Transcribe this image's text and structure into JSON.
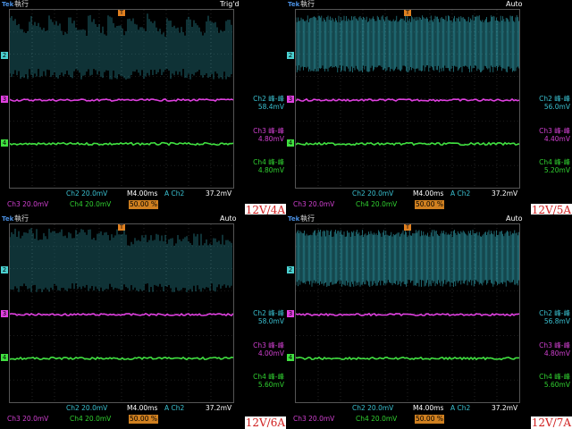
{
  "panels": [
    {
      "id": "p1",
      "brand": "Tek",
      "run_label": "執行",
      "trigger_state": "Trig'd",
      "trace_style": "bursts",
      "ch2_meas": {
        "label": "Ch2 峰-峰",
        "value": "58.4mV"
      },
      "ch3_meas": {
        "label": "Ch3 峰-峰",
        "value": "4.80mV"
      },
      "ch4_meas": {
        "label": "Ch4 峰-峰",
        "value": "4.80mV"
      },
      "ch2_scale": "Ch2  20.0mV",
      "time_scale": "M4.00ms",
      "trig_channel": "A  Ch2",
      "trig_level": "37.2mV",
      "ch3_scale": "Ch3  20.0mV",
      "ch4_scale": "Ch4  20.0mV",
      "trig_position": "50.00 %",
      "condition_label": "12V/4A"
    },
    {
      "id": "p2",
      "brand": "Tek",
      "run_label": "執行",
      "trigger_state": "Auto",
      "trace_style": "dense",
      "ch2_meas": {
        "label": "Ch2 峰-峰",
        "value": "56.0mV"
      },
      "ch3_meas": {
        "label": "Ch3 峰-峰",
        "value": "4.40mV"
      },
      "ch4_meas": {
        "label": "Ch4 峰-峰",
        "value": "5.20mV"
      },
      "ch2_scale": "Ch2  20.0mV",
      "time_scale": "M4.00ms",
      "trig_channel": "A  Ch2",
      "trig_level": "37.2mV",
      "ch3_scale": "Ch3  20.0mV",
      "ch4_scale": "Ch4  20.0mV",
      "trig_position": "50.00 %",
      "condition_label": "12V/5A"
    },
    {
      "id": "p3",
      "brand": "Tek",
      "run_label": "執行",
      "trigger_state": "Auto",
      "trace_style": "medium",
      "ch2_meas": {
        "label": "Ch2 峰-峰",
        "value": "58.0mV"
      },
      "ch3_meas": {
        "label": "Ch3 峰-峰",
        "value": "4.00mV"
      },
      "ch4_meas": {
        "label": "Ch4 峰-峰",
        "value": "5.60mV"
      },
      "ch2_scale": "Ch2  20.0mV",
      "time_scale": "M4.00ms",
      "trig_channel": "A  Ch2",
      "trig_level": "37.2mV",
      "ch3_scale": "Ch3  20.0mV",
      "ch4_scale": "Ch4  20.0mV",
      "trig_position": "50.00 %",
      "condition_label": "12V/6A"
    },
    {
      "id": "p4",
      "brand": "Tek",
      "run_label": "執行",
      "trigger_state": "Auto",
      "trace_style": "dense",
      "ch2_meas": {
        "label": "Ch2 峰-峰",
        "value": "56.8mV"
      },
      "ch3_meas": {
        "label": "Ch3 峰-峰",
        "value": "4.80mV"
      },
      "ch4_meas": {
        "label": "Ch4 峰-峰",
        "value": "5.60mV"
      },
      "ch2_scale": "Ch2  20.0mV",
      "time_scale": "M4.00ms",
      "trig_channel": "A  Ch2",
      "trig_level": "37.2mV",
      "ch3_scale": "Ch3  20.0mV",
      "ch4_scale": "Ch4  20.0mV",
      "trig_position": "50.00 %",
      "condition_label": "12V/7A"
    }
  ],
  "channel_markers": {
    "ch2": "2",
    "ch3": "3",
    "ch4": "4",
    "trigger": "T"
  },
  "colors": {
    "ch2": "#3ac0d0",
    "ch3": "#e040e0",
    "ch4": "#40e040",
    "grid": "#3a3a3a",
    "condition_label": "#d02020"
  }
}
